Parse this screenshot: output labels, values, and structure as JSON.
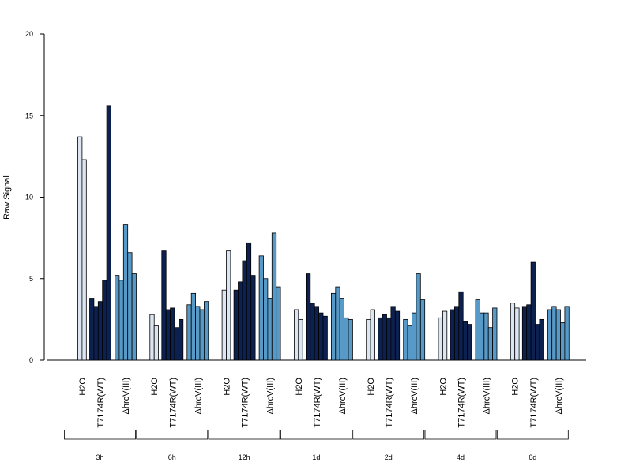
{
  "chart_data": {
    "type": "bar",
    "title": "",
    "ylabel": "Raw Signal",
    "xlabel": "",
    "ylim": [
      0,
      20
    ],
    "yticks": [
      0,
      5,
      10,
      15,
      20
    ],
    "grid": false,
    "group_labels": [
      "H2O",
      "T7174R(WT)",
      "ΔhrcV(III)"
    ],
    "colors": {
      "H2O": "#dce6f2",
      "T7174R(WT)": "#0d2150",
      "ΔhrcV(III)": "#5799c7",
      "outline": "#000000"
    },
    "timepoints": [
      {
        "label": "3h",
        "H2O": [
          13.7,
          12.3
        ],
        "T7174R(WT)": [
          3.8,
          3.3,
          3.6,
          4.9,
          15.6
        ],
        "ΔhrcV(III)": [
          5.2,
          4.9,
          8.3,
          6.6,
          5.3
        ]
      },
      {
        "label": "6h",
        "H2O": [
          2.8,
          2.1
        ],
        "T7174R(WT)": [
          6.7,
          3.1,
          3.2,
          2.0,
          2.5
        ],
        "ΔhrcV(III)": [
          3.4,
          4.1,
          3.3,
          3.1,
          3.6
        ]
      },
      {
        "label": "12h",
        "H2O": [
          4.3,
          6.7
        ],
        "T7174R(WT)": [
          4.3,
          4.8,
          6.1,
          7.2,
          5.2
        ],
        "ΔhrcV(III)": [
          6.4,
          5.0,
          3.8,
          7.8,
          4.5
        ]
      },
      {
        "label": "1d",
        "H2O": [
          3.1,
          2.5
        ],
        "T7174R(WT)": [
          5.3,
          3.5,
          3.3,
          2.9,
          2.7
        ],
        "ΔhrcV(III)": [
          4.1,
          4.5,
          3.8,
          2.6,
          2.5
        ]
      },
      {
        "label": "2d",
        "H2O": [
          2.5,
          3.1
        ],
        "T7174R(WT)": [
          2.6,
          2.8,
          2.6,
          3.3,
          3.0
        ],
        "ΔhrcV(III)": [
          2.5,
          2.1,
          2.9,
          5.3,
          3.7
        ]
      },
      {
        "label": "4d",
        "H2O": [
          2.6,
          3.0
        ],
        "T7174R(WT)": [
          3.1,
          3.3,
          4.2,
          2.4,
          2.2
        ],
        "ΔhrcV(III)": [
          3.7,
          2.9,
          2.9,
          2.0,
          3.2
        ]
      },
      {
        "label": "6d",
        "H2O": [
          3.5,
          3.2
        ],
        "T7174R(WT)": [
          3.3,
          3.4,
          6.0,
          2.2,
          2.5
        ],
        "ΔhrcV(III)": [
          3.1,
          3.3,
          3.1,
          2.3,
          3.3
        ]
      }
    ]
  }
}
